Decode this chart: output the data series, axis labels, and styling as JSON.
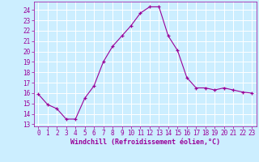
{
  "x": [
    0,
    1,
    2,
    3,
    4,
    5,
    6,
    7,
    8,
    9,
    10,
    11,
    12,
    13,
    14,
    15,
    16,
    17,
    18,
    19,
    20,
    21,
    22,
    23
  ],
  "y": [
    15.9,
    14.9,
    14.5,
    13.5,
    13.5,
    15.5,
    16.7,
    19.0,
    20.5,
    21.5,
    22.5,
    23.7,
    24.3,
    24.3,
    21.5,
    20.1,
    17.5,
    16.5,
    16.5,
    16.3,
    16.5,
    16.3,
    16.1,
    16.0
  ],
  "line_color": "#990099",
  "marker": "+",
  "bg_color": "#cceeff",
  "grid_color": "#ffffff",
  "xlabel": "Windchill (Refroidissement éolien,°C)",
  "xlabel_color": "#990099",
  "tick_color": "#990099",
  "ylabel_ticks": [
    13,
    14,
    15,
    16,
    17,
    18,
    19,
    20,
    21,
    22,
    23,
    24
  ],
  "xlim": [
    -0.5,
    23.5
  ],
  "ylim": [
    12.8,
    24.8
  ],
  "xticks": [
    0,
    1,
    2,
    3,
    4,
    5,
    6,
    7,
    8,
    9,
    10,
    11,
    12,
    13,
    14,
    15,
    16,
    17,
    18,
    19,
    20,
    21,
    22,
    23
  ]
}
